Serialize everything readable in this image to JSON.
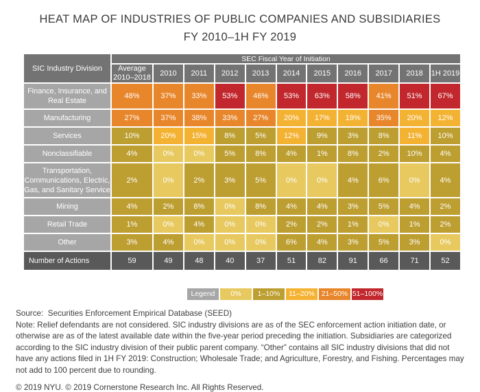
{
  "title": {
    "line1": "HEAT MAP OF INDUSTRIES OF PUBLIC COMPANIES AND SUBSIDIARIES",
    "line2": "FY 2010–1H FY 2019"
  },
  "table": {
    "corner_label": "SIC Industry Division",
    "band_label": "SEC Fiscal Year of Initiation"
  },
  "legend": {
    "label": "Legend"
  },
  "notes": {
    "source": "Source:  Securities Enforcement Empirical Database (SEED)",
    "note": "Note: Relief defendants are not considered. SIC industry divisions are as of the SEC enforcement action initiation date, or otherwise are as of the latest available date within the five-year period preceding the initiation. Subsidiaries are categorized according to the SIC industry division of their public parent company. “Other” contains all SIC industry divisions that did not have any actions filed in 1H FY 2019: Construction; Wholesale Trade; and Agriculture, Forestry, and Fishing. Percentages may not add to 100 percent due to rounding.",
    "copyright": "© 2019 NYU. © 2019 Cornerstone Research Inc. All Rights Reserved."
  },
  "colors": {
    "header_gray": "#737373",
    "row_label_gray": "#A6A6A6",
    "actions_row_gray": "#595959",
    "cell_text": "#FFFFFF",
    "bin_0_pct": "#E7C95F",
    "bin_1_10_pct": "#BD9E31",
    "bin_11_20_pct": "#F4B233",
    "bin_21_50_pct": "#E8862B",
    "bin_51_100_pct": "#C1272D"
  },
  "chart_data": {
    "type": "heatmap",
    "title": "HEAT MAP OF INDUSTRIES OF PUBLIC COMPANIES AND SUBSIDIARIES FY 2010–1H FY 2019",
    "unit": "%",
    "columns": [
      "Average\n2010–2018",
      "2010",
      "2011",
      "2012",
      "2013",
      "2014",
      "2015",
      "2016",
      "2017",
      "2018",
      "1H 2019"
    ],
    "rows": [
      {
        "label": "Finance, Insurance, and Real Estate",
        "size": "tall",
        "values": [
          48,
          37,
          33,
          53,
          46,
          53,
          63,
          58,
          41,
          51,
          67
        ]
      },
      {
        "label": "Manufacturing",
        "size": "std",
        "values": [
          27,
          37,
          38,
          33,
          27,
          20,
          17,
          19,
          35,
          20,
          12
        ]
      },
      {
        "label": "Services",
        "size": "std",
        "values": [
          10,
          20,
          15,
          8,
          5,
          12,
          9,
          3,
          8,
          11,
          10
        ]
      },
      {
        "label": "Nonclassifiable",
        "size": "std",
        "values": [
          4,
          0,
          0,
          5,
          8,
          4,
          1,
          8,
          2,
          10,
          4
        ]
      },
      {
        "label": "Transportation, Communications, Electric, Gas, and Sanitary Service",
        "size": "xtall",
        "values": [
          2,
          0,
          2,
          3,
          5,
          0,
          0,
          4,
          6,
          0,
          4
        ]
      },
      {
        "label": "Mining",
        "size": "std",
        "values": [
          4,
          2,
          8,
          0,
          8,
          4,
          4,
          3,
          5,
          4,
          2
        ]
      },
      {
        "label": "Retail Trade",
        "size": "std",
        "values": [
          1,
          0,
          4,
          0,
          0,
          2,
          2,
          1,
          0,
          1,
          2
        ]
      },
      {
        "label": "Other",
        "size": "std",
        "values": [
          3,
          4,
          0,
          0,
          0,
          6,
          4,
          3,
          5,
          3,
          0
        ]
      }
    ],
    "totals_row": {
      "label": "Number of Actions",
      "values": [
        59,
        49,
        48,
        40,
        37,
        51,
        82,
        91,
        66,
        71,
        52
      ]
    },
    "legend_bins": [
      {
        "label": "0%",
        "min": 0,
        "max": 0,
        "color": "#E7C95F"
      },
      {
        "label": "1–10%",
        "min": 1,
        "max": 10,
        "color": "#BD9E31"
      },
      {
        "label": "11–20%",
        "min": 11,
        "max": 20,
        "color": "#F4B233"
      },
      {
        "label": "21–50%",
        "min": 21,
        "max": 50,
        "color": "#E8862B"
      },
      {
        "label": "51–100%",
        "min": 51,
        "max": 100,
        "color": "#C1272D"
      }
    ],
    "layout": {
      "legend_position": "bottom-center",
      "grid": false
    }
  }
}
